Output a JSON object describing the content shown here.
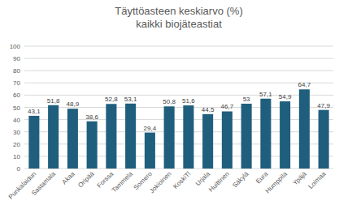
{
  "chart_data": {
    "type": "bar",
    "title": "Täyttöasteen keskiarvo (%)",
    "subtitle": "kaikki biojäteastiat",
    "categories": [
      "Punkalaidun",
      "Sastamala",
      "Akaa",
      "Oripää",
      "Forssa",
      "Tammela",
      "Somero",
      "Jokioinen",
      "KoskiTl",
      "Urjala",
      "Huittinen",
      "Säkylä",
      "Eura",
      "Humppila",
      "Ypäjä",
      "Loimaa"
    ],
    "values": [
      43.1,
      51.8,
      48.9,
      38.6,
      52.8,
      53.1,
      29.4,
      50.8,
      51.6,
      44.5,
      46.7,
      53,
      57.1,
      54.9,
      64.7,
      47.9
    ],
    "value_labels": [
      "43,1",
      "51,8",
      "48,9",
      "38,6",
      "52,8",
      "53,1",
      "29,4",
      "50,8",
      "51,6",
      "44,5",
      "46,7",
      "53",
      "57,1",
      "54,9",
      "64,7",
      "47,9"
    ],
    "color": "#1f5f7d",
    "ylim": [
      0,
      100
    ],
    "yticks": [
      0,
      10,
      20,
      30,
      40,
      50,
      60,
      70,
      80,
      90,
      100
    ],
    "grid": true,
    "data_labels": true
  }
}
